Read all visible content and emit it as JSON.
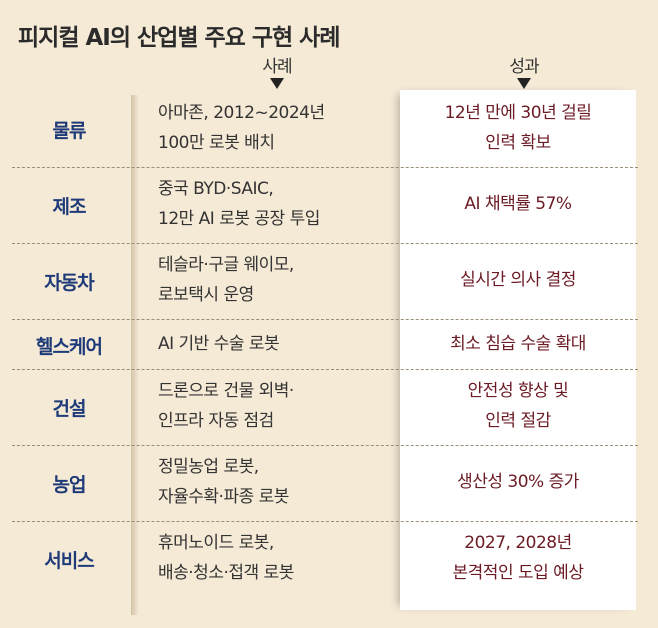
{
  "title": "피지컬 AI의 산업별 주요 구현 사례",
  "columns": {
    "example": "사례",
    "result": "성과"
  },
  "rows": [
    {
      "category": "물류",
      "example": [
        "아마존, 2012~2024년",
        "100만 로봇 배치"
      ],
      "result": [
        "12년 만에 30년 걸릴",
        "인력 확보"
      ]
    },
    {
      "category": "제조",
      "example": [
        "중국 BYD·SAIC,",
        "12만 AI 로봇 공장 투입"
      ],
      "result": [
        "AI 채택률 57%"
      ]
    },
    {
      "category": "자동차",
      "example": [
        "테슬라·구글 웨이모,",
        "로보택시 운영"
      ],
      "result": [
        "실시간 의사 결정"
      ]
    },
    {
      "category": "헬스케어",
      "example": [
        "AI 기반 수술 로봇"
      ],
      "result": [
        "최소 침습 수술 확대"
      ]
    },
    {
      "category": "건설",
      "example": [
        "드론으로 건물 외벽·",
        "인프라 자동 점검"
      ],
      "result": [
        "안전성 향상 및",
        "인력 절감"
      ]
    },
    {
      "category": "농업",
      "example": [
        "정밀농업 로봇,",
        "자율수확·파종 로봇"
      ],
      "result": [
        "생산성 30% 증가"
      ]
    },
    {
      "category": "서비스",
      "example": [
        "휴머노이드 로봇,",
        "배송·청소·접객 로봇"
      ],
      "result": [
        "2027, 2028년",
        "본격적인 도입 예상"
      ]
    }
  ],
  "colors": {
    "category": "#1e3a78",
    "result": "#6b1b24",
    "background": "#f5ead6"
  }
}
